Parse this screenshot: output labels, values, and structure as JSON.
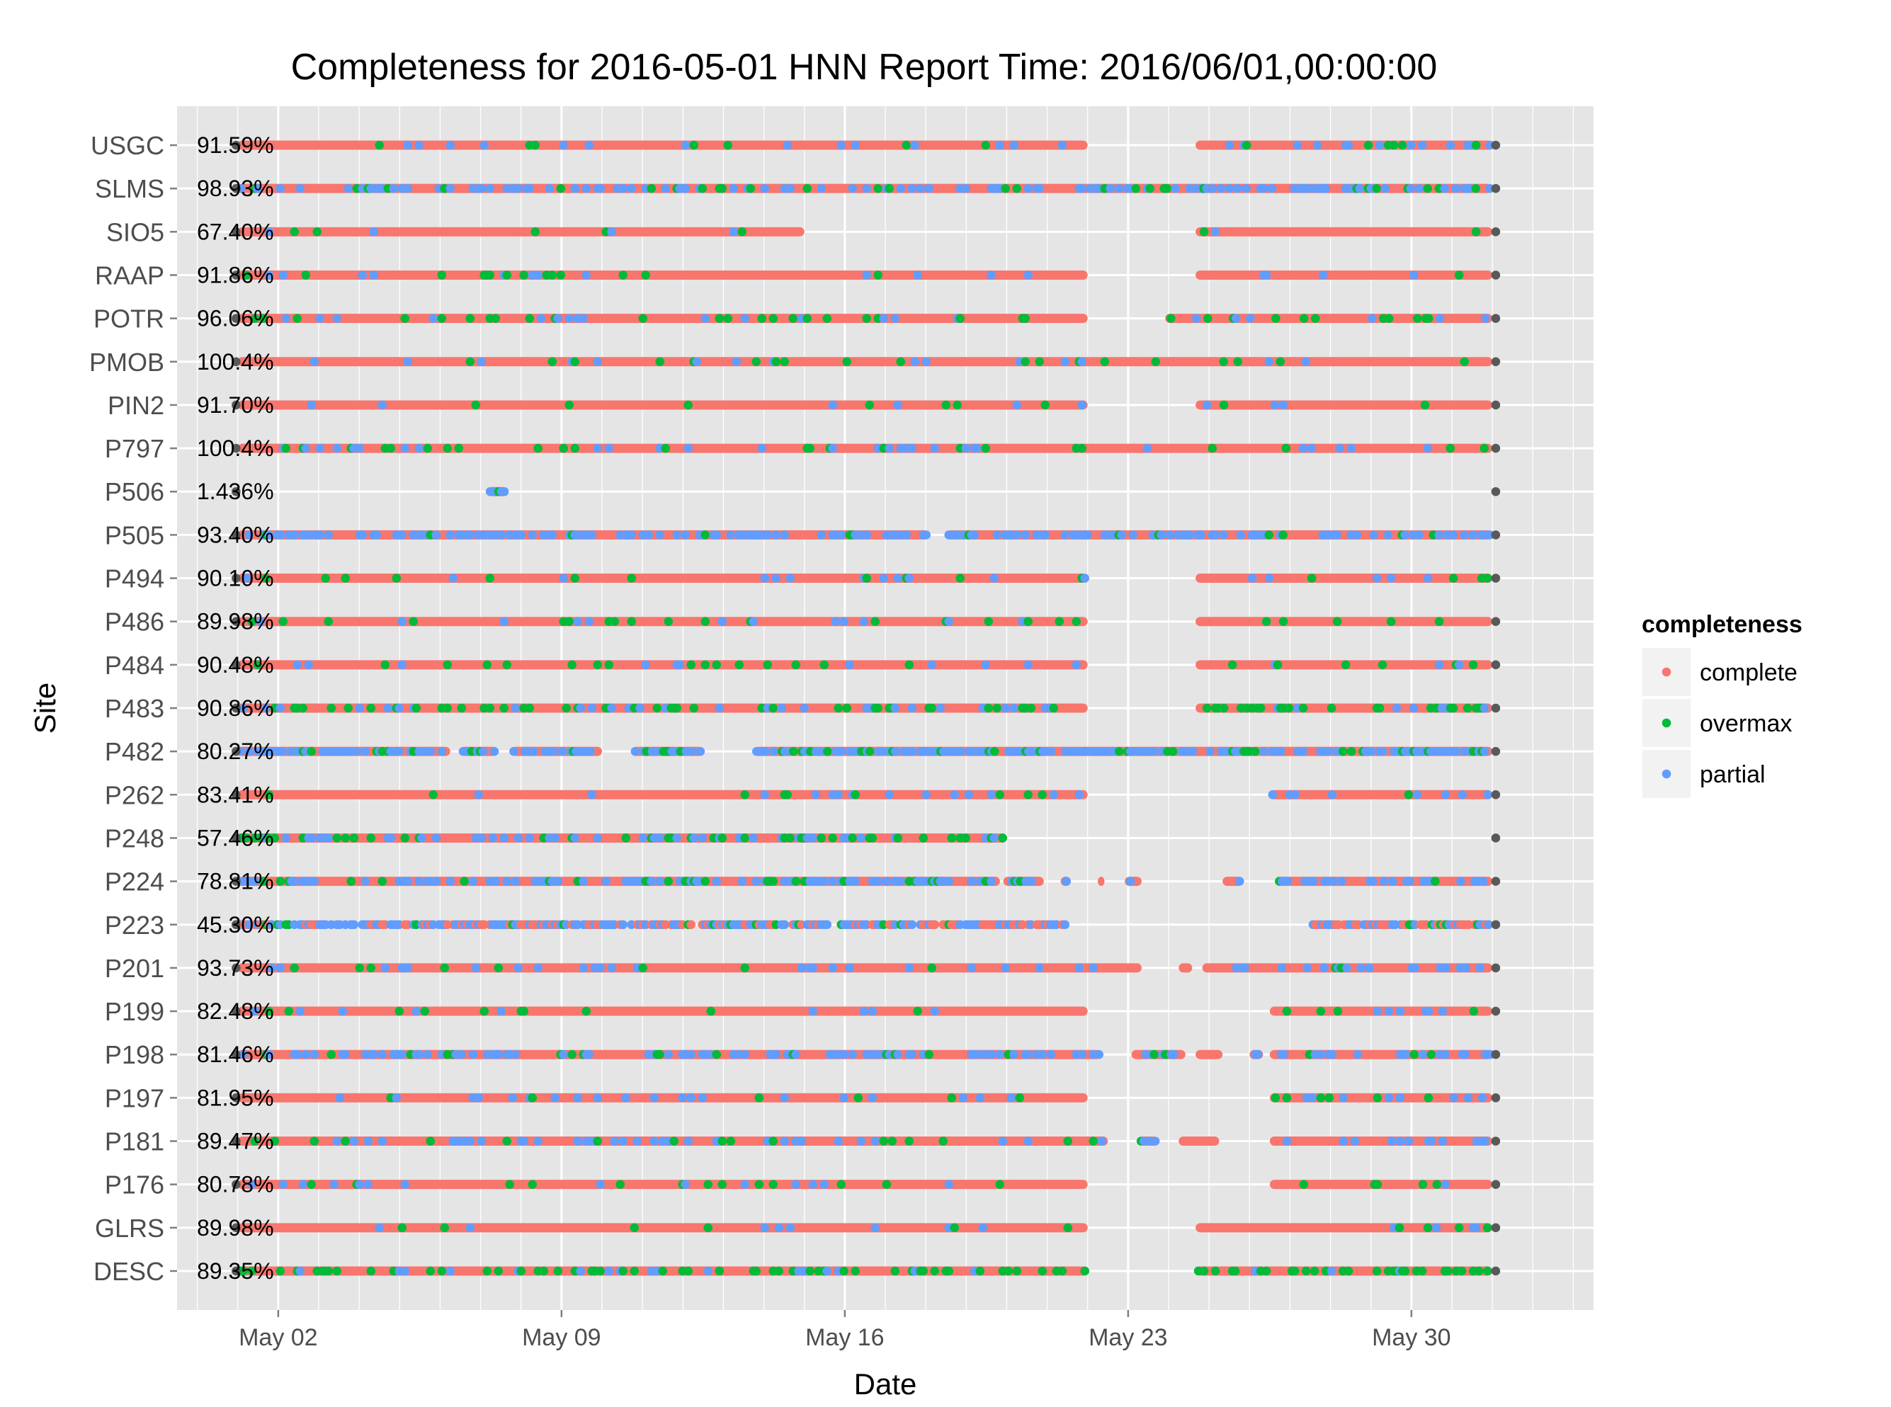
{
  "chart_data": {
    "type": "scatter",
    "title": "Completeness for  2016-05-01 HNN  Report Time:  2016/06/01,00:00:00",
    "xlabel": "Date",
    "ylabel": "Site",
    "x_ticks": [
      {
        "date": "2016-05-02",
        "label": "May 02"
      },
      {
        "date": "2016-05-09",
        "label": "May 09"
      },
      {
        "date": "2016-05-16",
        "label": "May 16"
      },
      {
        "date": "2016-05-23",
        "label": "May 23"
      },
      {
        "date": "2016-05-30",
        "label": "May 30"
      }
    ],
    "x_range": [
      "2016-04-29T12:00",
      "2016-06-03T12:00"
    ],
    "grid": true,
    "legend": {
      "title": "completeness",
      "position": "right",
      "entries": [
        {
          "label": "complete",
          "color": "#F8766D"
        },
        {
          "label": "overmax",
          "color": "#00BA38"
        },
        {
          "label": "partial",
          "color": "#619CFF"
        }
      ]
    },
    "marker_color": "#595959",
    "sites": [
      {
        "name": "USGC",
        "pct": "91.59%",
        "segments": [
          [
            "2016-05-01T00:00",
            "2016-05-22T00:00"
          ],
          [
            "2016-05-24T16:00",
            "2016-06-01T00:00"
          ]
        ],
        "partial": 0.08,
        "overmax": 0.03
      },
      {
        "name": "SLMS",
        "pct": "98.93%",
        "segments": [
          [
            "2016-05-01T00:00",
            "2016-06-01T00:00"
          ]
        ],
        "partial": 0.25,
        "overmax": 0.06
      },
      {
        "name": "SIO5",
        "pct": "67.40%",
        "segments": [
          [
            "2016-05-01T00:00",
            "2016-05-15T00:00"
          ],
          [
            "2016-05-24T16:00",
            "2016-06-01T00:00"
          ]
        ],
        "partial": 0.02,
        "overmax": 0.02
      },
      {
        "name": "RAAP",
        "pct": "91.86%",
        "segments": [
          [
            "2016-05-01T00:00",
            "2016-05-22T00:00"
          ],
          [
            "2016-05-24T16:00",
            "2016-06-01T00:00"
          ]
        ],
        "partial": 0.03,
        "overmax": 0.03
      },
      {
        "name": "POTR",
        "pct": "96.06%",
        "segments": [
          [
            "2016-05-01T00:00",
            "2016-05-22T00:00"
          ],
          [
            "2016-05-23T22:00",
            "2016-06-01T00:00"
          ]
        ],
        "partial": 0.04,
        "overmax": 0.08
      },
      {
        "name": "PMOB",
        "pct": "100.4%",
        "segments": [
          [
            "2016-05-01T00:00",
            "2016-06-01T00:00"
          ]
        ],
        "partial": 0.04,
        "overmax": 0.04
      },
      {
        "name": "PIN2",
        "pct": "91.70%",
        "segments": [
          [
            "2016-05-01T00:00",
            "2016-05-22T00:00"
          ],
          [
            "2016-05-24T16:00",
            "2016-06-01T00:00"
          ]
        ],
        "partial": 0.03,
        "overmax": 0.03
      },
      {
        "name": "P797",
        "pct": "100.4%",
        "segments": [
          [
            "2016-05-01T00:00",
            "2016-06-01T00:00"
          ]
        ],
        "partial": 0.06,
        "overmax": 0.06
      },
      {
        "name": "P506",
        "pct": "1.436%",
        "segments": [
          [
            "2016-05-07T04:00",
            "2016-05-07T16:00"
          ]
        ],
        "partial": 0.5,
        "overmax": 0.3
      },
      {
        "name": "P505",
        "pct": "93.40%",
        "segments": [
          [
            "2016-05-01T00:00",
            "2016-05-18T02:00"
          ],
          [
            "2016-05-18T12:00",
            "2016-06-01T00:00"
          ]
        ],
        "partial": 0.35,
        "overmax": 0.05
      },
      {
        "name": "P494",
        "pct": "90.10%",
        "segments": [
          [
            "2016-05-01T00:00",
            "2016-05-22T00:00"
          ],
          [
            "2016-05-24T16:00",
            "2016-06-01T00:00"
          ]
        ],
        "partial": 0.03,
        "overmax": 0.03
      },
      {
        "name": "P486",
        "pct": "89.98%",
        "segments": [
          [
            "2016-05-01T00:00",
            "2016-05-22T00:00"
          ],
          [
            "2016-05-24T16:00",
            "2016-06-01T00:00"
          ]
        ],
        "partial": 0.03,
        "overmax": 0.05
      },
      {
        "name": "P484",
        "pct": "90.48%",
        "segments": [
          [
            "2016-05-01T00:00",
            "2016-05-22T00:00"
          ],
          [
            "2016-05-24T16:00",
            "2016-06-01T00:00"
          ]
        ],
        "partial": 0.03,
        "overmax": 0.04
      },
      {
        "name": "P483",
        "pct": "90.86%",
        "segments": [
          [
            "2016-05-01T00:00",
            "2016-05-22T00:00"
          ],
          [
            "2016-05-24T16:00",
            "2016-06-01T00:00"
          ]
        ],
        "partial": 0.06,
        "overmax": 0.18
      },
      {
        "name": "P482",
        "pct": "80.27%",
        "segments": [
          [
            "2016-05-01T00:00",
            "2016-05-06T06:00"
          ],
          [
            "2016-05-06T12:00",
            "2016-05-07T10:00"
          ],
          [
            "2016-05-07T18:00",
            "2016-05-10T00:00"
          ],
          [
            "2016-05-10T18:00",
            "2016-05-12T12:00"
          ],
          [
            "2016-05-13T18:00",
            "2016-06-01T00:00"
          ]
        ],
        "partial": 0.4,
        "overmax": 0.12
      },
      {
        "name": "P262",
        "pct": "83.41%",
        "segments": [
          [
            "2016-05-01T00:00",
            "2016-05-22T00:00"
          ],
          [
            "2016-05-26T12:00",
            "2016-06-01T00:00"
          ]
        ],
        "partial": 0.05,
        "overmax": 0.03
      },
      {
        "name": "P248",
        "pct": "57.46%",
        "segments": [
          [
            "2016-05-01T00:00",
            "2016-05-20T00:00"
          ]
        ],
        "partial": 0.15,
        "overmax": 0.15
      },
      {
        "name": "P224",
        "pct": "78.81%",
        "segments": [
          [
            "2016-05-01T00:00",
            "2016-05-19T20:00"
          ],
          [
            "2016-05-19T22:00",
            "2016-05-20T22:00"
          ],
          [
            "2016-05-21T08:00",
            "2016-05-21T14:00"
          ],
          [
            "2016-05-22T06:00",
            "2016-05-22T10:00"
          ],
          [
            "2016-05-22T22:00",
            "2016-05-23T08:00"
          ],
          [
            "2016-05-25T08:00",
            "2016-05-25T20:00"
          ],
          [
            "2016-05-26T16:00",
            "2016-06-01T00:00"
          ]
        ],
        "partial": 0.25,
        "overmax": 0.08
      },
      {
        "name": "P223",
        "pct": "45.30%",
        "segments": [
          [
            "2016-05-01T00:00",
            "2016-05-21T12:00"
          ],
          [
            "2016-05-27T12:00",
            "2016-06-01T00:00"
          ]
        ],
        "partial": 0.45,
        "overmax": 0.08,
        "gappy": true
      },
      {
        "name": "P201",
        "pct": "93.73%",
        "segments": [
          [
            "2016-05-01T00:00",
            "2016-05-23T08:00"
          ],
          [
            "2016-05-24T06:00",
            "2016-05-24T14:00"
          ],
          [
            "2016-05-24T20:00",
            "2016-06-01T00:00"
          ]
        ],
        "partial": 0.1,
        "overmax": 0.05
      },
      {
        "name": "P199",
        "pct": "82.48%",
        "segments": [
          [
            "2016-05-01T00:00",
            "2016-05-22T00:00"
          ],
          [
            "2016-05-26T12:00",
            "2016-06-01T00:00"
          ]
        ],
        "partial": 0.04,
        "overmax": 0.04
      },
      {
        "name": "P198",
        "pct": "81.46%",
        "segments": [
          [
            "2016-05-01T00:00",
            "2016-05-22T08:00"
          ],
          [
            "2016-05-23T02:00",
            "2016-05-24T10:00"
          ],
          [
            "2016-05-24T16:00",
            "2016-05-25T08:00"
          ],
          [
            "2016-05-26T00:00",
            "2016-05-26T08:00"
          ],
          [
            "2016-05-26T12:00",
            "2016-06-01T00:00"
          ]
        ],
        "partial": 0.22,
        "overmax": 0.05
      },
      {
        "name": "P197",
        "pct": "81.95%",
        "segments": [
          [
            "2016-05-01T00:00",
            "2016-05-22T00:00"
          ],
          [
            "2016-05-26T12:00",
            "2016-06-01T00:00"
          ]
        ],
        "partial": 0.06,
        "overmax": 0.04
      },
      {
        "name": "P181",
        "pct": "89.47%",
        "segments": [
          [
            "2016-05-01T00:00",
            "2016-05-22T12:00"
          ],
          [
            "2016-05-23T06:00",
            "2016-05-23T18:00"
          ],
          [
            "2016-05-24T06:00",
            "2016-05-25T06:00"
          ],
          [
            "2016-05-26T12:00",
            "2016-06-01T00:00"
          ]
        ],
        "partial": 0.12,
        "overmax": 0.05
      },
      {
        "name": "P176",
        "pct": "80.78%",
        "segments": [
          [
            "2016-05-01T00:00",
            "2016-05-22T00:00"
          ],
          [
            "2016-05-26T12:00",
            "2016-06-01T00:00"
          ]
        ],
        "partial": 0.04,
        "overmax": 0.05
      },
      {
        "name": "GLRS",
        "pct": "89.98%",
        "segments": [
          [
            "2016-05-01T00:00",
            "2016-05-22T00:00"
          ],
          [
            "2016-05-24T16:00",
            "2016-06-01T00:00"
          ]
        ],
        "partial": 0.03,
        "overmax": 0.02
      },
      {
        "name": "DESC",
        "pct": "89.35%",
        "segments": [
          [
            "2016-05-01T00:00",
            "2016-05-22T00:00"
          ],
          [
            "2016-05-24T16:00",
            "2016-06-01T00:00"
          ]
        ],
        "partial": 0.04,
        "overmax": 0.25
      }
    ]
  }
}
